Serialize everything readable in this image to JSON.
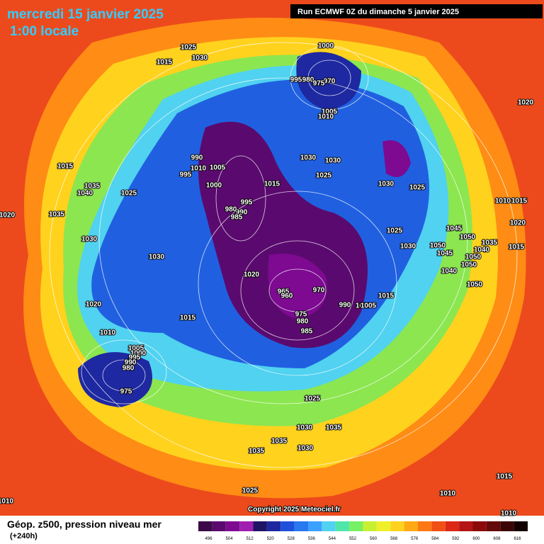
{
  "header": {
    "title": "mercredi 15 janvier 2025",
    "subtitle": "1:00 locale",
    "run": "Run ECMWF 0Z du dimanche 5 janvier 2025"
  },
  "map": {
    "copyright": "Copyright 2025 Meteociel.fr",
    "isobar_labels": [
      1025,
      1030,
      1015,
      1000,
      995,
      980,
      970,
      975,
      1005,
      1010,
      1015,
      1040,
      1035,
      1025,
      1035,
      1020,
      1030,
      1030,
      1020,
      1010,
      1005,
      1000,
      995,
      990,
      980,
      975,
      1015,
      1020,
      965,
      960,
      970,
      975,
      980,
      985,
      990,
      1010,
      1005,
      1015,
      1010,
      1005,
      990,
      995,
      1000,
      1015,
      995,
      990,
      985,
      980,
      1030,
      1030,
      1025,
      1030,
      1025,
      1025,
      1030,
      1045,
      1050,
      1050,
      1040,
      1035,
      1015,
      1020,
      1015,
      1010,
      1020,
      1050,
      1050,
      1045,
      1040,
      1050,
      1025,
      1030,
      1035,
      1035,
      1035,
      1030,
      1025,
      1015,
      1010,
      1010,
      1010
    ]
  },
  "footer": {
    "caption": "Géop. z500, pression niveau mer",
    "lead": "(+240h)"
  },
  "legend": {
    "ticks": [
      496,
      504,
      512,
      520,
      528,
      536,
      544,
      552,
      560,
      568,
      576,
      584,
      592,
      600,
      608,
      616
    ],
    "colors": [
      "#3c0a46",
      "#5a0a6e",
      "#7d0a91",
      "#a01eaf",
      "#1e1464",
      "#1e28a0",
      "#1e50dc",
      "#2878f0",
      "#3ca0ff",
      "#50d2f0",
      "#50e6aa",
      "#78f064",
      "#c8f032",
      "#f0f028",
      "#ffd21e",
      "#ffaa14",
      "#ff7814",
      "#f05014",
      "#dc2814",
      "#b41414",
      "#8c0a0a",
      "#640a0a",
      "#3c0505",
      "#140000"
    ]
  }
}
